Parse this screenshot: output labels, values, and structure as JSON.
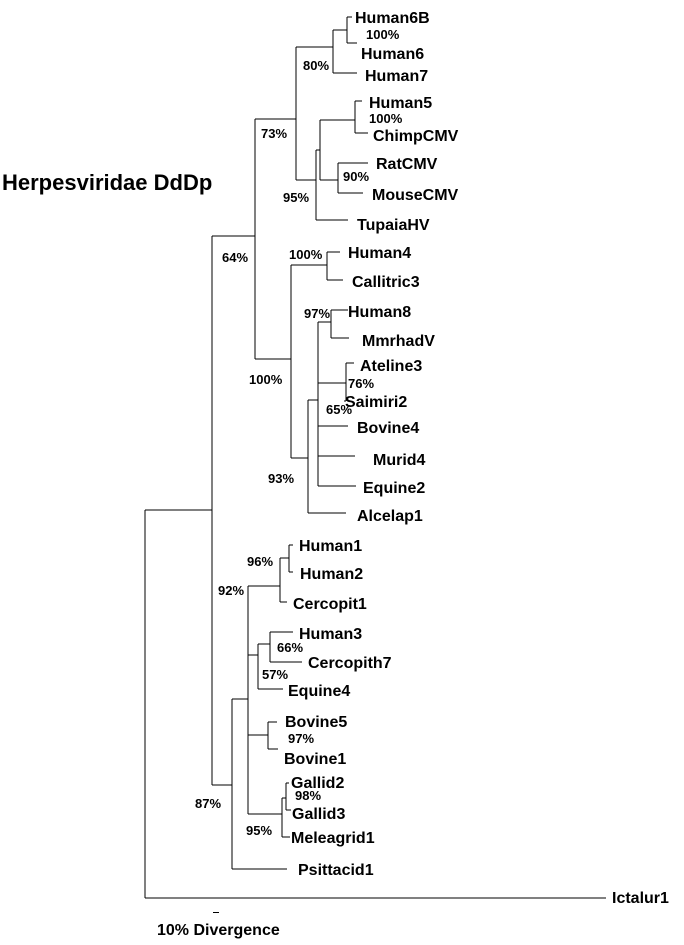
{
  "title": "Herpesviridae DdDp",
  "scale_label": "10% Divergence",
  "leaves": {
    "human6b": "Human6B",
    "human6": "Human6",
    "human7": "Human7",
    "human5": "Human5",
    "chimpcmv": "ChimpCMV",
    "ratcmv": "RatCMV",
    "mousecmv": "MouseCMV",
    "tupaiahv": "TupaiaHV",
    "human4": "Human4",
    "callitric3": "Callitric3",
    "human8": "Human8",
    "mmrhadv": "MmrhadV",
    "ateline3": "Ateline3",
    "saimiri2": "Saimiri2",
    "bovine4": "Bovine4",
    "murid4": "Murid4",
    "equine2": "Equine2",
    "alcelap1": "Alcelap1",
    "human1": "Human1",
    "human2": "Human2",
    "cercopit1": "Cercopit1",
    "human3": "Human3",
    "cercopith7": "Cercopith7",
    "equine4": "Equine4",
    "bovine5": "Bovine5",
    "bovine1": "Bovine1",
    "gallid2": "Gallid2",
    "gallid3": "Gallid3",
    "meleagrid1": "Meleagrid1",
    "psittacid1": "Psittacid1",
    "ictalur1": "Ictalur1"
  },
  "support": {
    "s_h6b_h6": "100%",
    "s_h6_h7": "80%",
    "s_beta_top": "73%",
    "s_h5_chimp": "100%",
    "s_rat_mouse": "90%",
    "s_cmv_clade": "95%",
    "s_beta": "64%",
    "s_h4_call": "100%",
    "s_h8_mmrh": "97%",
    "s_roseolo": "100%",
    "s_atel_saim": "76%",
    "s_gamma_inner": "65%",
    "s_gamma": "93%",
    "s_h1_h2": "96%",
    "s_simplex": "92%",
    "s_h3_cerc7": "66%",
    "s_h3_equ4": "57%",
    "s_bov5_bov1": "97%",
    "s_gal2_gal3": "98%",
    "s_gal_mel": "95%",
    "s_alpha": "87%"
  }
}
